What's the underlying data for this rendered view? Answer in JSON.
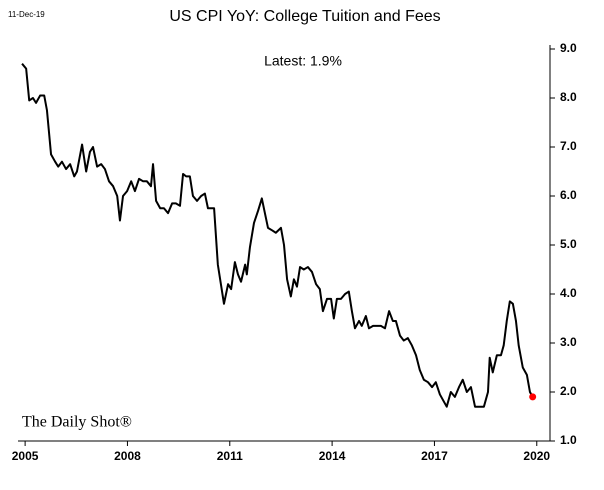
{
  "chart_data": {
    "type": "line",
    "title": "US CPI YoY: College Tuition and Fees",
    "date": "11-Dec-19",
    "annotation": "Latest:  1.9%",
    "watermark": "The Daily Shot®",
    "series": [
      {
        "name": "College Tuition and Fees",
        "color": "#000000",
        "x": [
          2004.91,
          2005.03,
          2005.12,
          2005.23,
          2005.32,
          2005.44,
          2005.56,
          2005.64,
          2005.76,
          2005.88,
          2005.97,
          2006.08,
          2006.2,
          2006.32,
          2006.44,
          2006.52,
          2006.67,
          2006.79,
          2006.9,
          2006.99,
          2007.11,
          2007.23,
          2007.34,
          2007.46,
          2007.58,
          2007.7,
          2007.78,
          2007.87,
          2007.99,
          2008.11,
          2008.22,
          2008.34,
          2008.46,
          2008.57,
          2008.69,
          2008.75,
          2008.84,
          2008.96,
          2009.07,
          2009.19,
          2009.31,
          2009.42,
          2009.54,
          2009.63,
          2009.72,
          2009.83,
          2009.92,
          2010.04,
          2010.16,
          2010.27,
          2010.36,
          2010.54,
          2010.65,
          2010.83,
          2010.95,
          2011.04,
          2011.15,
          2011.24,
          2011.33,
          2011.45,
          2011.5,
          2011.59,
          2011.71,
          2011.83,
          2011.94,
          2012.03,
          2012.12,
          2012.24,
          2012.35,
          2012.5,
          2012.59,
          2012.68,
          2012.79,
          2012.88,
          2012.97,
          2013.06,
          2013.17,
          2013.29,
          2013.41,
          2013.53,
          2013.64,
          2013.73,
          2013.85,
          2013.97,
          2014.05,
          2014.14,
          2014.26,
          2014.38,
          2014.49,
          2014.58,
          2014.67,
          2014.79,
          2014.87,
          2014.99,
          2015.08,
          2015.2,
          2015.31,
          2015.43,
          2015.55,
          2015.67,
          2015.78,
          2015.87,
          2015.99,
          2016.1,
          2016.22,
          2016.34,
          2016.46,
          2016.57,
          2016.69,
          2016.81,
          2016.93,
          2017.04,
          2017.16,
          2017.28,
          2017.36,
          2017.48,
          2017.6,
          2017.72,
          2017.83,
          2017.95,
          2018.07,
          2018.19,
          2018.33,
          2018.45,
          2018.57,
          2018.62,
          2018.71,
          2018.83,
          2018.95,
          2019.03,
          2019.12,
          2019.21,
          2019.3,
          2019.39,
          2019.47,
          2019.59,
          2019.71,
          2019.8,
          2019.88
        ],
        "values": [
          8.7,
          8.6,
          7.95,
          8.0,
          7.9,
          8.05,
          8.05,
          7.75,
          6.85,
          6.7,
          6.6,
          6.7,
          6.55,
          6.65,
          6.4,
          6.5,
          7.05,
          6.5,
          6.9,
          7.0,
          6.6,
          6.65,
          6.55,
          6.3,
          6.2,
          6.0,
          5.5,
          6.0,
          6.1,
          6.3,
          6.1,
          6.35,
          6.3,
          6.3,
          6.2,
          6.65,
          5.9,
          5.75,
          5.75,
          5.65,
          5.85,
          5.85,
          5.8,
          6.45,
          6.4,
          6.4,
          6.0,
          5.9,
          6.0,
          6.05,
          5.75,
          5.75,
          4.6,
          3.8,
          4.2,
          4.1,
          4.65,
          4.4,
          4.25,
          4.6,
          4.4,
          4.95,
          5.45,
          5.7,
          5.95,
          5.65,
          5.35,
          5.3,
          5.25,
          5.35,
          5.0,
          4.3,
          3.95,
          4.3,
          4.15,
          4.55,
          4.5,
          4.55,
          4.45,
          4.2,
          4.1,
          3.65,
          3.9,
          3.9,
          3.5,
          3.9,
          3.9,
          4.0,
          4.05,
          3.65,
          3.3,
          3.45,
          3.35,
          3.55,
          3.3,
          3.35,
          3.35,
          3.35,
          3.3,
          3.65,
          3.45,
          3.45,
          3.15,
          3.05,
          3.1,
          2.95,
          2.75,
          2.45,
          2.25,
          2.2,
          2.1,
          2.2,
          1.95,
          1.8,
          1.7,
          2.0,
          1.9,
          2.1,
          2.25,
          2.0,
          2.1,
          1.7,
          1.7,
          1.7,
          2.0,
          2.7,
          2.4,
          2.75,
          2.75,
          2.95,
          3.45,
          3.85,
          3.8,
          3.45,
          2.95,
          2.5,
          2.35,
          2.0,
          1.9
        ]
      }
    ],
    "latest_color": "#ff0000",
    "xlim": [
      2004.85,
      2020.3
    ],
    "xticks": [
      2005,
      2008,
      2011,
      2014,
      2017,
      2020
    ],
    "ylim": [
      1,
      9
    ],
    "yticks": [
      {
        "value": 1,
        "label": "1.0"
      },
      {
        "value": 2,
        "label": "2.0"
      },
      {
        "value": 3,
        "label": "3.0"
      },
      {
        "value": 4,
        "label": "4.0"
      },
      {
        "value": 5,
        "label": "5.0"
      },
      {
        "value": 6,
        "label": "6.0"
      },
      {
        "value": 7,
        "label": "7.0"
      },
      {
        "value": 8,
        "label": "8.0"
      },
      {
        "value": 9,
        "label": "9.0"
      }
    ],
    "grid": false
  }
}
